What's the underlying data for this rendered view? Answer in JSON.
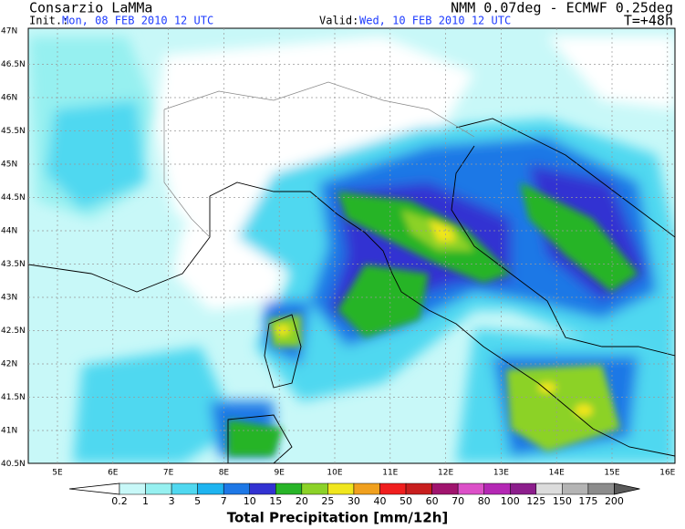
{
  "header": {
    "title": "Consarzio LaMMa",
    "model": "NMM 0.07deg - ECMWF 0.25deg",
    "init_label": "Init.:",
    "init": "Mon, 08 FEB 2010  12 UTC",
    "valid_label": "Valid:",
    "valid": "Wed, 10 FEB 2010  12 UTC",
    "lead": "T=+48h"
  },
  "map": {
    "lat_labels": [
      "47N",
      "46.5N",
      "46N",
      "45.5N",
      "45N",
      "44.5N",
      "44N",
      "43.5N",
      "43N",
      "42.5N",
      "42N",
      "41.5N",
      "41N",
      "40.5N"
    ],
    "lon_labels": [
      "5E",
      "6E",
      "7E",
      "8E",
      "9E",
      "10E",
      "11E",
      "12E",
      "13E",
      "14E",
      "15E",
      "16E"
    ]
  },
  "colorbar": {
    "levels": [
      0.2,
      1,
      3,
      5,
      7,
      10,
      15,
      20,
      25,
      30,
      40,
      50,
      60,
      70,
      80,
      100,
      125,
      150,
      175,
      200
    ],
    "colors": [
      "#ffffff",
      "#c8f8f8",
      "#96f0f0",
      "#50d8f0",
      "#1eb4f0",
      "#1e78e6",
      "#3232d2",
      "#28b428",
      "#8cd228",
      "#f0e61e",
      "#f0a01e",
      "#f01e1e",
      "#c81e1e",
      "#a0146e",
      "#dc50c8",
      "#b428b4",
      "#8c1e8c",
      "#dcdcdc",
      "#b4b4b4",
      "#8c8c8c",
      "#5a5a5a"
    ],
    "title": "Total Precipitation [mm/12h]"
  }
}
